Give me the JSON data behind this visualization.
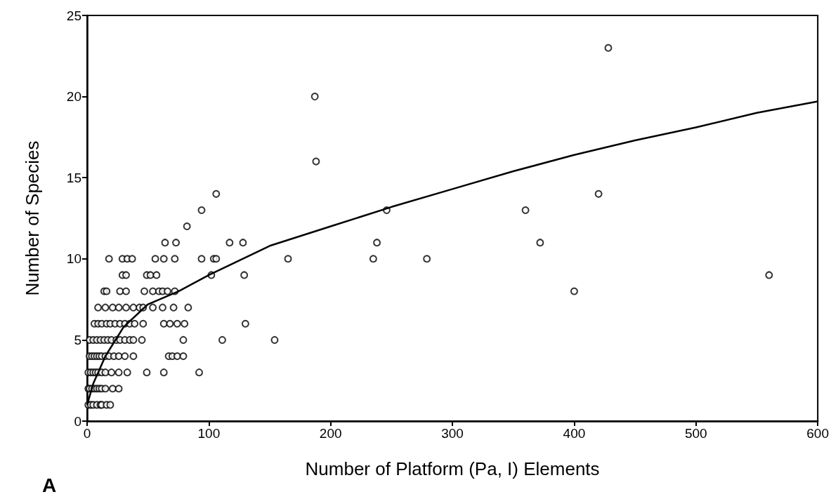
{
  "chart_data": {
    "type": "scatter",
    "xlabel": "Number of Platform (Pa, I) Elements",
    "ylabel": "Number of Species",
    "annotations": [
      "A"
    ],
    "xlim": [
      0,
      600
    ],
    "xticks": [
      0,
      100,
      200,
      300,
      400,
      500,
      600
    ],
    "ylim": [
      0,
      25
    ],
    "yticks": [
      0,
      5,
      10,
      15,
      20,
      25
    ],
    "grid": false,
    "series": [
      {
        "color": "#000000",
        "marker": "circle",
        "x": [
          1,
          3,
          5,
          8,
          11,
          12,
          16,
          19,
          1,
          2,
          4,
          6,
          8,
          10,
          12,
          15,
          21,
          26,
          1,
          3,
          5,
          7,
          9,
          12,
          15,
          20,
          26,
          33,
          49,
          63,
          92,
          2,
          4,
          6,
          8,
          10,
          12,
          15,
          18,
          22,
          26,
          31,
          38,
          67,
          70,
          74,
          79,
          2,
          5,
          8,
          11,
          14,
          17,
          20,
          24,
          27,
          31,
          35,
          38,
          45,
          79,
          111,
          154,
          6,
          9,
          12,
          16,
          19,
          23,
          27,
          31,
          35,
          39,
          46,
          63,
          68,
          74,
          80,
          130,
          9,
          15,
          21,
          26,
          32,
          38,
          43,
          46,
          54,
          62,
          71,
          83,
          14,
          16,
          27,
          32,
          47,
          54,
          59,
          62,
          66,
          72,
          400,
          29,
          32,
          49,
          52,
          57,
          102,
          129,
          560,
          18,
          29,
          33,
          37,
          56,
          63,
          72,
          94,
          104,
          106,
          165,
          235,
          279,
          64,
          73,
          117,
          128,
          238,
          372,
          82,
          94,
          246,
          360,
          106,
          420,
          188,
          187,
          428
        ],
        "values": [
          1,
          1,
          1,
          1,
          1,
          1,
          1,
          1,
          2,
          2,
          2,
          2,
          2,
          2,
          2,
          2,
          2,
          2,
          3,
          3,
          3,
          3,
          3,
          3,
          3,
          3,
          3,
          3,
          3,
          3,
          3,
          4,
          4,
          4,
          4,
          4,
          4,
          4,
          4,
          4,
          4,
          4,
          4,
          4,
          4,
          4,
          4,
          5,
          5,
          5,
          5,
          5,
          5,
          5,
          5,
          5,
          5,
          5,
          5,
          5,
          5,
          5,
          5,
          6,
          6,
          6,
          6,
          6,
          6,
          6,
          6,
          6,
          6,
          6,
          6,
          6,
          6,
          6,
          6,
          7,
          7,
          7,
          7,
          7,
          7,
          7,
          7,
          7,
          7,
          7,
          7,
          8,
          8,
          8,
          8,
          8,
          8,
          8,
          8,
          8,
          8,
          8,
          9,
          9,
          9,
          9,
          9,
          9,
          9,
          9,
          10,
          10,
          10,
          10,
          10,
          10,
          10,
          10,
          10,
          10,
          10,
          10,
          10,
          11,
          11,
          11,
          11,
          11,
          11,
          12,
          13,
          13,
          13,
          14,
          14,
          16,
          20,
          23
        ]
      },
      {
        "type": "line",
        "marker": "none",
        "color": "#000000",
        "x": [
          0,
          5,
          15,
          30,
          50,
          75,
          100,
          150,
          200,
          250,
          300,
          350,
          400,
          450,
          500,
          550,
          600
        ],
        "values": [
          1,
          2.3,
          4,
          5.8,
          7.2,
          8,
          9,
          10.8,
          12,
          13.2,
          14.3,
          15.4,
          16.4,
          17.3,
          18.1,
          19,
          19.7
        ]
      }
    ]
  }
}
